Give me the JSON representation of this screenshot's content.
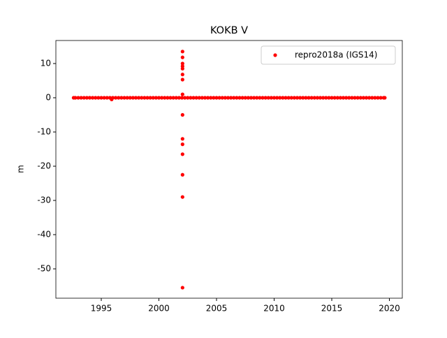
{
  "chart_data": {
    "type": "scatter",
    "title": "KOKB V",
    "y_label": "m",
    "xlim": [
      1991.06,
      2021.12
    ],
    "ylim": [
      -58.57,
      16.73
    ],
    "xticks": [
      1995,
      2000,
      2005,
      2010,
      2015,
      2020
    ],
    "yticks": [
      -50,
      -40,
      -30,
      -20,
      -10,
      0,
      10
    ],
    "legend": "upper right",
    "series": [
      {
        "name": "repro2018a (IGS14)",
        "color": "#ff0000",
        "x": [
          1992.6,
          1992.75,
          1993,
          1993.25,
          1993.5,
          1993.75,
          1994,
          1994.25,
          1994.5,
          1994.75,
          1995,
          1995.25,
          1995.5,
          1995.75,
          1996,
          1996.25,
          1996.5,
          1996.75,
          1997,
          1997.25,
          1997.5,
          1997.75,
          1998,
          1998.25,
          1998.5,
          1998.75,
          1999,
          1999.25,
          1999.5,
          1999.75,
          2000,
          2000.25,
          2000.5,
          2000.75,
          2001,
          2001.25,
          2001.5,
          2001.75,
          2002,
          2002.25,
          2002.5,
          2002.75,
          2003,
          2003.25,
          2003.5,
          2003.75,
          2004,
          2004.25,
          2004.5,
          2004.75,
          2005,
          2005.25,
          2005.5,
          2005.75,
          2006,
          2006.25,
          2006.5,
          2006.75,
          2007,
          2007.25,
          2007.5,
          2007.75,
          2008,
          2008.25,
          2008.5,
          2008.75,
          2009,
          2009.25,
          2009.5,
          2009.75,
          2010,
          2010.25,
          2010.5,
          2010.75,
          2011,
          2011.25,
          2011.5,
          2011.75,
          2012,
          2012.25,
          2012.5,
          2012.75,
          2013,
          2013.25,
          2013.5,
          2013.75,
          2014,
          2014.25,
          2014.5,
          2014.75,
          2015,
          2015.25,
          2015.5,
          2015.75,
          2016,
          2016.25,
          2016.5,
          2016.75,
          2017,
          2017.25,
          2017.5,
          2017.75,
          2018,
          2018.25,
          2018.5,
          2018.75,
          2019,
          2019.25,
          2019.5,
          2019.6,
          1995.9,
          2002.05,
          2002.05,
          2002.05,
          2002.05,
          2002.05,
          2002.05,
          2002.05,
          2002.05,
          2002.05,
          2002.05,
          2002.05,
          2002.05,
          2002.05,
          2002.05,
          2002.05
        ],
        "values": [
          0,
          0,
          0,
          0,
          0,
          0,
          0,
          0,
          0,
          0,
          0,
          0,
          0,
          0,
          0,
          0,
          0,
          0,
          0,
          0,
          0,
          0,
          0,
          0,
          0,
          0,
          0,
          0,
          0,
          0,
          0,
          0,
          0,
          0,
          0,
          0,
          0,
          0,
          0,
          0,
          0,
          0,
          0,
          0,
          0,
          0,
          0,
          0,
          0,
          0,
          0,
          0,
          0,
          0,
          0,
          0,
          0,
          0,
          0,
          0,
          0,
          0,
          0,
          0,
          0,
          0,
          0,
          0,
          0,
          0,
          0,
          0,
          0,
          0,
          0,
          0,
          0,
          0,
          0,
          0,
          0,
          0,
          0,
          0,
          0,
          0,
          0,
          0,
          0,
          0,
          0,
          0,
          0,
          0,
          0,
          0,
          0,
          0,
          0,
          0,
          0,
          0,
          0,
          0,
          0,
          0,
          0,
          0,
          0,
          0,
          -0.5,
          13.5,
          11.8,
          10,
          9.2,
          8.5,
          6.8,
          5.3,
          1,
          -5,
          -12,
          -13.6,
          -16.5,
          -22.5,
          -29,
          -55.5
        ]
      }
    ]
  }
}
